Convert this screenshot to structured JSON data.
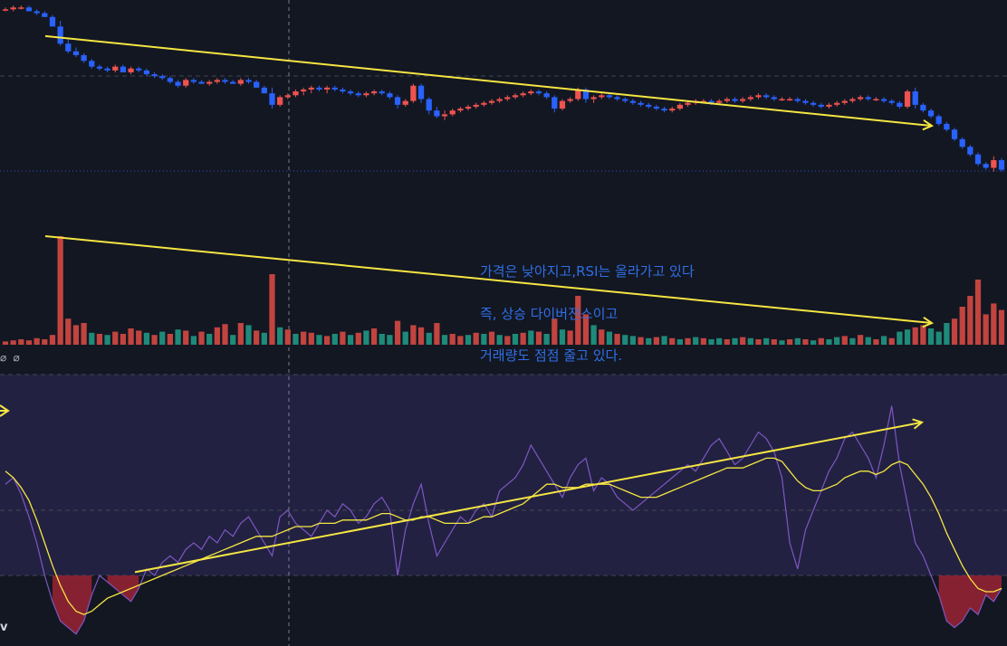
{
  "chart_data": [
    {
      "type": "candlestick",
      "pane": "price",
      "colors": {
        "up": "#ef5350",
        "down": "#2962ff",
        "trendline": "#f5e642",
        "dotted_level": "#2962ff"
      },
      "ylim": [
        0,
        100
      ],
      "candles": [
        [
          97,
          98,
          96,
          97
        ],
        [
          97,
          99,
          96,
          98
        ],
        [
          98,
          99,
          97,
          98
        ],
        [
          98,
          99,
          96,
          96
        ],
        [
          96,
          97,
          94,
          95
        ],
        [
          95,
          96,
          93,
          93
        ],
        [
          93,
          94,
          89,
          88
        ],
        [
          88,
          91,
          78,
          79
        ],
        [
          79,
          82,
          74,
          75
        ],
        [
          75,
          77,
          72,
          73
        ],
        [
          73,
          74,
          69,
          70
        ],
        [
          70,
          71,
          66,
          67
        ],
        [
          67,
          68,
          65,
          66
        ],
        [
          66,
          67,
          64,
          65
        ],
        [
          65,
          68,
          64,
          67
        ],
        [
          67,
          68,
          64,
          64
        ],
        [
          64,
          67,
          63,
          66
        ],
        [
          66,
          67,
          64,
          65
        ],
        [
          65,
          66,
          62,
          63
        ],
        [
          63,
          64,
          61,
          62
        ],
        [
          62,
          63,
          60,
          61
        ],
        [
          61,
          62,
          58,
          59
        ],
        [
          59,
          60,
          56,
          57
        ],
        [
          57,
          61,
          56,
          60
        ],
        [
          60,
          61,
          58,
          59
        ],
        [
          59,
          60,
          58,
          58
        ],
        [
          58,
          60,
          57,
          59
        ],
        [
          59,
          61,
          58,
          60
        ],
        [
          60,
          61,
          58,
          59
        ],
        [
          59,
          60,
          58,
          58
        ],
        [
          58,
          61,
          57,
          60
        ],
        [
          60,
          61,
          58,
          59
        ],
        [
          59,
          60,
          56,
          56
        ],
        [
          56,
          57,
          53,
          53
        ],
        [
          53,
          56,
          45,
          47
        ],
        [
          47,
          52,
          46,
          51
        ],
        [
          51,
          53,
          50,
          52
        ],
        [
          52,
          55,
          51,
          54
        ],
        [
          54,
          56,
          52,
          55
        ],
        [
          55,
          57,
          53,
          56
        ],
        [
          56,
          57,
          54,
          55
        ],
        [
          55,
          57,
          53,
          56
        ],
        [
          56,
          57,
          54,
          55
        ],
        [
          55,
          56,
          53,
          54
        ],
        [
          54,
          55,
          52,
          53
        ],
        [
          53,
          54,
          51,
          52
        ],
        [
          52,
          54,
          51,
          53
        ],
        [
          53,
          55,
          52,
          54
        ],
        [
          54,
          55,
          52,
          53
        ],
        [
          53,
          54,
          50,
          51
        ],
        [
          51,
          52,
          45,
          47
        ],
        [
          47,
          50,
          46,
          49
        ],
        [
          49,
          58,
          48,
          57
        ],
        [
          57,
          58,
          48,
          50
        ],
        [
          50,
          51,
          42,
          44
        ],
        [
          44,
          46,
          40,
          41
        ],
        [
          41,
          44,
          39,
          42
        ],
        [
          42,
          45,
          41,
          44
        ],
        [
          44,
          46,
          43,
          45
        ],
        [
          45,
          47,
          44,
          46
        ],
        [
          46,
          48,
          45,
          47
        ],
        [
          47,
          49,
          46,
          48
        ],
        [
          48,
          50,
          47,
          49
        ],
        [
          49,
          51,
          48,
          50
        ],
        [
          50,
          52,
          49,
          51
        ],
        [
          51,
          53,
          50,
          52
        ],
        [
          52,
          54,
          51,
          53
        ],
        [
          53,
          55,
          52,
          54
        ],
        [
          54,
          55,
          52,
          53
        ],
        [
          53,
          54,
          50,
          51
        ],
        [
          51,
          52,
          43,
          45
        ],
        [
          45,
          50,
          44,
          49
        ],
        [
          49,
          51,
          48,
          50
        ],
        [
          50,
          56,
          49,
          55
        ],
        [
          55,
          56,
          48,
          50
        ],
        [
          50,
          52,
          48,
          51
        ],
        [
          51,
          53,
          50,
          52
        ],
        [
          52,
          53,
          50,
          51
        ],
        [
          51,
          52,
          49,
          50
        ],
        [
          50,
          51,
          48,
          49
        ],
        [
          49,
          50,
          47,
          48
        ],
        [
          48,
          49,
          46,
          47
        ],
        [
          47,
          48,
          45,
          46
        ],
        [
          46,
          47,
          44,
          45
        ],
        [
          45,
          46,
          43,
          44
        ],
        [
          44,
          46,
          43,
          45
        ],
        [
          45,
          48,
          44,
          47
        ],
        [
          47,
          49,
          46,
          48
        ],
        [
          48,
          50,
          47,
          49
        ],
        [
          49,
          50,
          48,
          49
        ],
        [
          49,
          50,
          47,
          48
        ],
        [
          48,
          50,
          47,
          49
        ],
        [
          49,
          51,
          48,
          50
        ],
        [
          50,
          51,
          48,
          49
        ],
        [
          49,
          51,
          48,
          50
        ],
        [
          50,
          52,
          49,
          51
        ],
        [
          51,
          53,
          50,
          52
        ],
        [
          52,
          53,
          50,
          51
        ],
        [
          51,
          52,
          49,
          50
        ],
        [
          50,
          51,
          49,
          50
        ],
        [
          50,
          51,
          49,
          50
        ],
        [
          50,
          51,
          48,
          49
        ],
        [
          49,
          50,
          47,
          48
        ],
        [
          48,
          49,
          46,
          47
        ],
        [
          47,
          48,
          45,
          46
        ],
        [
          46,
          48,
          45,
          47
        ],
        [
          47,
          49,
          46,
          48
        ],
        [
          48,
          50,
          47,
          49
        ],
        [
          49,
          51,
          48,
          50
        ],
        [
          50,
          52,
          49,
          51
        ],
        [
          51,
          52,
          49,
          50
        ],
        [
          50,
          51,
          49,
          50
        ],
        [
          50,
          51,
          48,
          49
        ],
        [
          49,
          50,
          47,
          48
        ],
        [
          48,
          49,
          45,
          46
        ],
        [
          46,
          55,
          45,
          54
        ],
        [
          54,
          56,
          45,
          47
        ],
        [
          47,
          48,
          43,
          44
        ],
        [
          44,
          45,
          40,
          41
        ],
        [
          41,
          42,
          36,
          37
        ],
        [
          37,
          38,
          33,
          34
        ],
        [
          34,
          35,
          28,
          29
        ],
        [
          29,
          30,
          24,
          25
        ],
        [
          25,
          26,
          20,
          21
        ],
        [
          21,
          22,
          15,
          16
        ],
        [
          16,
          17,
          13,
          14
        ],
        [
          14,
          20,
          12,
          18
        ],
        [
          18,
          19,
          12,
          13
        ]
      ],
      "trendline": {
        "from": [
          4,
          83
        ],
        "to": [
          93,
          36
        ]
      }
    },
    {
      "type": "bar",
      "pane": "volume",
      "colors": {
        "up": "#c2443f",
        "down": "#1f8a7a",
        "trendline": "#f5e642"
      },
      "values": [
        3,
        4,
        5,
        4,
        6,
        5,
        9,
        100,
        24,
        18,
        20,
        11,
        10,
        9,
        12,
        10,
        15,
        13,
        11,
        9,
        12,
        10,
        14,
        13,
        8,
        12,
        10,
        16,
        19,
        9,
        20,
        18,
        13,
        11,
        65,
        16,
        14,
        10,
        12,
        11,
        9,
        8,
        10,
        12,
        9,
        11,
        13,
        15,
        10,
        9,
        22,
        12,
        18,
        16,
        11,
        20,
        9,
        10,
        8,
        9,
        11,
        10,
        12,
        9,
        8,
        10,
        11,
        13,
        12,
        10,
        24,
        14,
        13,
        45,
        28,
        18,
        14,
        12,
        10,
        9,
        8,
        7,
        6,
        7,
        8,
        6,
        5,
        6,
        7,
        6,
        5,
        6,
        5,
        6,
        7,
        6,
        5,
        6,
        5,
        4,
        5,
        6,
        5,
        4,
        6,
        5,
        7,
        8,
        6,
        9,
        7,
        5,
        8,
        6,
        12,
        14,
        16,
        18,
        15,
        12,
        20,
        24,
        35,
        45,
        60,
        28,
        38,
        32
      ],
      "up_flags": [
        1,
        1,
        1,
        1,
        1,
        1,
        1,
        1,
        1,
        1,
        1,
        0,
        1,
        0,
        1,
        1,
        1,
        1,
        0,
        1,
        0,
        1,
        0,
        1,
        0,
        1,
        0,
        1,
        1,
        0,
        1,
        0,
        1,
        0,
        1,
        0,
        1,
        0,
        1,
        1,
        0,
        1,
        0,
        1,
        0,
        1,
        0,
        1,
        0,
        0,
        1,
        0,
        1,
        1,
        0,
        1,
        0,
        1,
        1,
        0,
        1,
        0,
        1,
        0,
        1,
        0,
        1,
        0,
        1,
        0,
        1,
        0,
        1,
        1,
        1,
        0,
        1,
        0,
        1,
        0,
        0,
        1,
        0,
        1,
        0,
        1,
        0,
        1,
        0,
        1,
        0,
        0,
        1,
        0,
        1,
        0,
        1,
        0,
        1,
        0,
        1,
        0,
        1,
        0,
        1,
        0,
        0,
        1,
        0,
        1,
        0,
        1,
        0,
        1,
        0,
        0,
        1,
        1,
        0,
        0,
        0,
        1,
        1,
        1,
        1,
        1,
        1,
        1
      ],
      "trendline": {
        "from": [
          4,
          100
        ],
        "to": [
          93,
          20
        ]
      }
    },
    {
      "type": "line",
      "pane": "rsi",
      "colors": {
        "rsi": "#7e57c2",
        "signal": "#f5e642",
        "band_fill": "#222142",
        "oversold_fill": "#9b2335",
        "trendline": "#f5e642"
      },
      "levels": {
        "upper": 70,
        "middle": 50,
        "lower": 30
      },
      "ylim": [
        10,
        90
      ],
      "series": [
        {
          "values": [
            58,
            60,
            55,
            48,
            40,
            30,
            22,
            16,
            14,
            12,
            16,
            24,
            30,
            28,
            26,
            24,
            22,
            26,
            32,
            30,
            34,
            36,
            34,
            38,
            40,
            38,
            42,
            40,
            44,
            42,
            46,
            48,
            44,
            40,
            36,
            48,
            50,
            46,
            44,
            42,
            46,
            50,
            48,
            52,
            50,
            46,
            48,
            52,
            54,
            50,
            30,
            44,
            52,
            58,
            46,
            36,
            40,
            44,
            48,
            46,
            50,
            52,
            48,
            56,
            58,
            60,
            64,
            70,
            66,
            62,
            58,
            54,
            60,
            64,
            66,
            56,
            60,
            58,
            54,
            52,
            50,
            52,
            54,
            56,
            58,
            60,
            62,
            64,
            62,
            66,
            70,
            72,
            68,
            64,
            66,
            70,
            74,
            72,
            68,
            60,
            40,
            32,
            44,
            50,
            56,
            62,
            66,
            72,
            74,
            70,
            66,
            60,
            70,
            82,
            64,
            52,
            40,
            36,
            30,
            24,
            16,
            14,
            16,
            20,
            18,
            24,
            22,
            26
          ]
        },
        {
          "values": [
            62,
            60,
            57,
            53,
            47,
            40,
            33,
            27,
            22,
            19,
            18,
            19,
            21,
            23,
            24,
            25,
            26,
            27,
            28,
            29,
            30,
            31,
            32,
            33,
            34,
            35,
            36,
            37,
            38,
            39,
            40,
            41,
            42,
            42,
            42,
            43,
            44,
            45,
            45,
            45,
            46,
            46,
            46,
            47,
            47,
            47,
            47,
            48,
            49,
            49,
            48,
            47,
            47,
            48,
            48,
            47,
            46,
            46,
            46,
            46,
            47,
            48,
            48,
            49,
            50,
            51,
            52,
            54,
            56,
            58,
            58,
            57,
            57,
            57,
            58,
            58,
            58,
            58,
            57,
            56,
            55,
            54,
            54,
            54,
            55,
            56,
            57,
            58,
            59,
            60,
            61,
            62,
            63,
            63,
            63,
            64,
            65,
            66,
            66,
            65,
            62,
            59,
            57,
            56,
            56,
            57,
            58,
            60,
            61,
            62,
            62,
            61,
            62,
            64,
            65,
            64,
            61,
            58,
            54,
            49,
            43,
            38,
            33,
            29,
            26,
            25,
            25,
            26
          ]
        }
      ],
      "trendline": {
        "from": [
          13,
          31
        ],
        "to": [
          92,
          77
        ]
      }
    }
  ],
  "annotation": {
    "lines": [
      "가격은 낮아지고,RSI는 올라가고 있다",
      "즉, 상승 다이버전스이고",
      "거래량도 점점 줄고 있다."
    ]
  },
  "volume_pane_label": "∅ ∅",
  "corner_label": "v"
}
